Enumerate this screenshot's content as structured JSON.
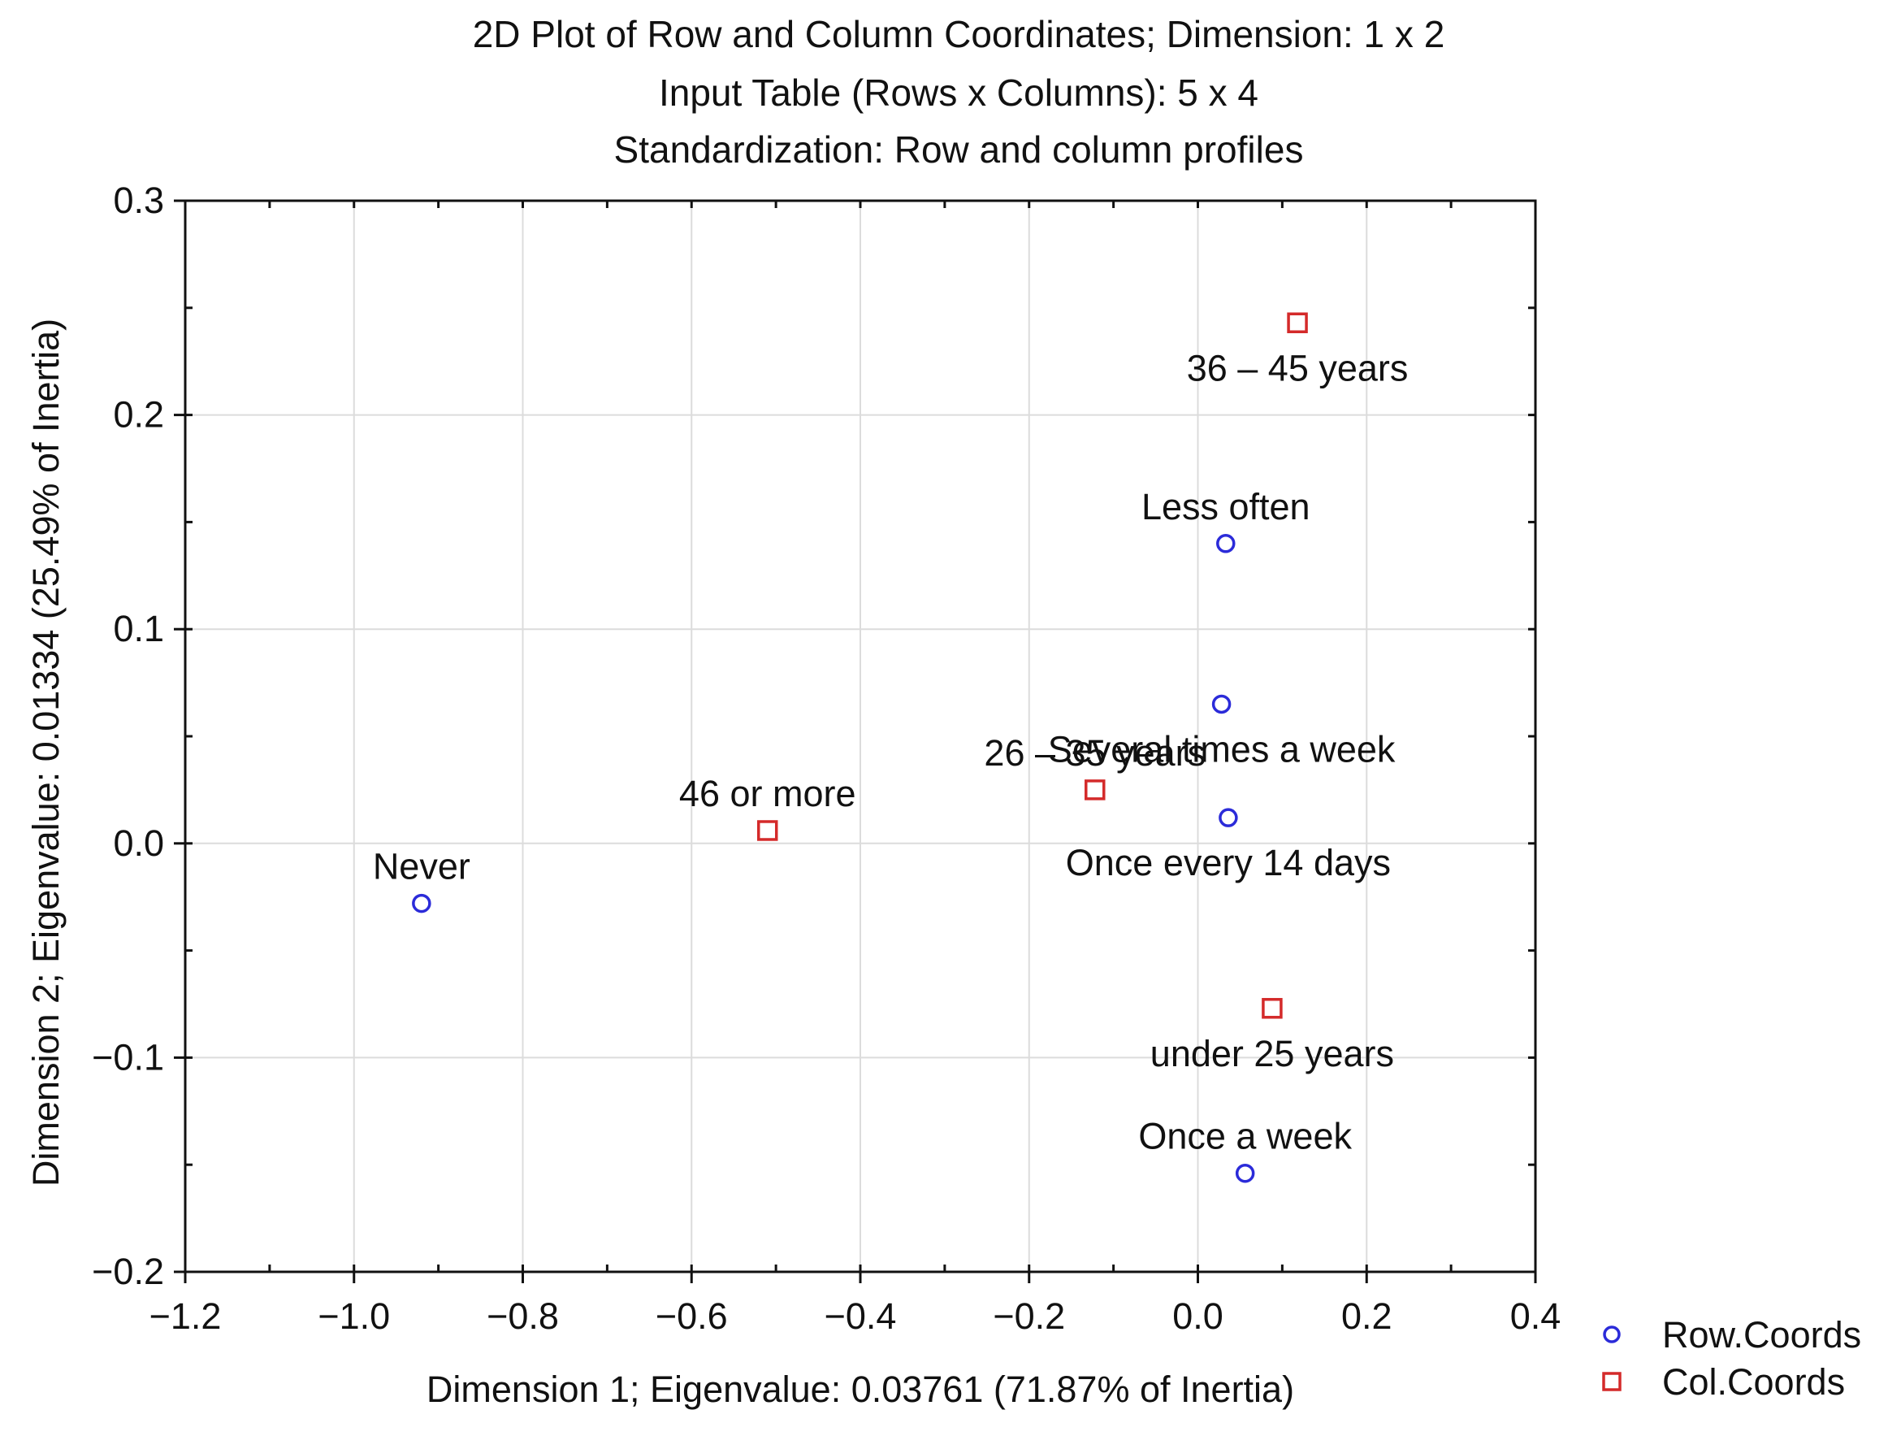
{
  "chart_data": {
    "type": "scatter",
    "title": "2D Plot of Row and Column Coordinates; Dimension:  1 x  2",
    "subtitle": "Input Table (Rows x Columns): 5 x 4",
    "subtitle2": "Standardization: Row and column profiles",
    "xlabel": "Dimension 1; Eigenvalue: 0.03761 (71.87% of Inertia)",
    "ylabel": "Dimension 2; Eigenvalue: 0.01334 (25.49% of Inertia)",
    "xlim": [
      -1.2,
      0.4
    ],
    "ylim": [
      -0.2,
      0.3
    ],
    "x_ticks": [
      -1.2,
      -1.0,
      -0.8,
      -0.6,
      -0.4,
      -0.2,
      0.0,
      0.2,
      0.4
    ],
    "y_ticks": [
      -0.2,
      -0.1,
      0.0,
      0.1,
      0.2,
      0.3
    ],
    "x_tick_labels": [
      "−1.2",
      "−1.0",
      "−0.8",
      "−0.6",
      "−0.4",
      "−0.2",
      "0.0",
      "0.2",
      "0.4"
    ],
    "y_tick_labels": [
      "−0.2",
      "−0.1",
      "0.0",
      "0.1",
      "0.2",
      "0.3"
    ],
    "grid": true,
    "legend_position": "bottom-right, outside plot",
    "series": [
      {
        "name": "Row.Coords",
        "marker": "circle",
        "color": "#2b2bd9",
        "points": [
          {
            "label": "Less often",
            "x": 0.033,
            "y": 0.14,
            "label_pos": "above"
          },
          {
            "label": "Several times a week",
            "x": 0.028,
            "y": 0.065,
            "label_pos": "below"
          },
          {
            "label": "Once every 14 days",
            "x": 0.036,
            "y": 0.012,
            "label_pos": "below"
          },
          {
            "label": "Never",
            "x": -0.92,
            "y": -0.028,
            "label_pos": "above"
          },
          {
            "label": "Once a week",
            "x": 0.056,
            "y": -0.154,
            "label_pos": "above"
          }
        ]
      },
      {
        "name": "Col.Coords",
        "marker": "square",
        "color": "#d42a2a",
        "points": [
          {
            "label": "36 – 45 years",
            "x": 0.118,
            "y": 0.243,
            "label_pos": "below"
          },
          {
            "label": "26 – 35 years",
            "x": -0.122,
            "y": 0.025,
            "label_pos": "above"
          },
          {
            "label": "46 or more",
            "x": -0.51,
            "y": 0.006,
            "label_pos": "above"
          },
          {
            "label": "under 25 years",
            "x": 0.088,
            "y": -0.077,
            "label_pos": "below"
          }
        ]
      }
    ]
  }
}
